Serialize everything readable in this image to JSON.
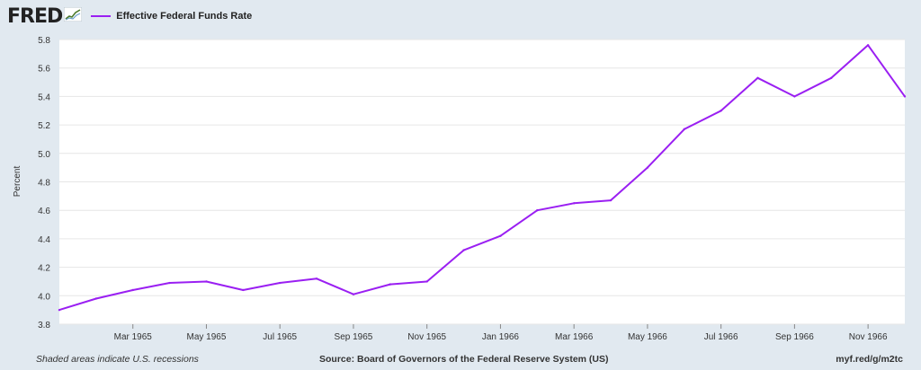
{
  "header": {
    "logo_text": "FRED",
    "logo_icon": "fred-chart-icon",
    "legend_label": "Effective Federal Funds Rate"
  },
  "colors": {
    "background": "#e1e9f0",
    "plot_bg": "#ffffff",
    "gridline": "#e6e6e6",
    "series": "#9a1ff2",
    "text": "#333333"
  },
  "footer": {
    "note": "Shaded areas indicate U.S. recessions",
    "source": "Source: Board of Governors of the Federal Reserve System (US)",
    "url": "myf.red/g/m2tc"
  },
  "chart_data": {
    "type": "line",
    "ylabel": "Percent",
    "ylim": [
      3.8,
      5.8
    ],
    "yticks": [
      3.8,
      4.0,
      4.2,
      4.4,
      4.6,
      4.8,
      5.0,
      5.2,
      5.4,
      5.6,
      5.8
    ],
    "ytick_labels": [
      "3.8",
      "4.0",
      "4.2",
      "4.4",
      "4.6",
      "4.8",
      "5.0",
      "5.2",
      "5.4",
      "5.6",
      "5.8"
    ],
    "xlim": [
      "1965-01",
      "1966-12"
    ],
    "xtick_positions": [
      "1965-03",
      "1965-05",
      "1965-07",
      "1965-09",
      "1965-11",
      "1966-01",
      "1966-03",
      "1966-05",
      "1966-07",
      "1966-09",
      "1966-11"
    ],
    "xtick_labels": [
      "Mar 1965",
      "May 1965",
      "Jul 1965",
      "Sep 1965",
      "Nov 1965",
      "Jan 1966",
      "Mar 1966",
      "May 1966",
      "Jul 1966",
      "Sep 1966",
      "Nov 1966"
    ],
    "grid": true,
    "legend_position": "top-left",
    "series": [
      {
        "name": "Effective Federal Funds Rate",
        "color": "#9a1ff2",
        "x": [
          "1965-01",
          "1965-02",
          "1965-03",
          "1965-04",
          "1965-05",
          "1965-06",
          "1965-07",
          "1965-08",
          "1965-09",
          "1965-10",
          "1965-11",
          "1965-12",
          "1966-01",
          "1966-02",
          "1966-03",
          "1966-04",
          "1966-05",
          "1966-06",
          "1966-07",
          "1966-08",
          "1966-09",
          "1966-10",
          "1966-11",
          "1966-12"
        ],
        "values": [
          3.9,
          3.98,
          4.04,
          4.09,
          4.1,
          4.04,
          4.09,
          4.12,
          4.01,
          4.08,
          4.1,
          4.32,
          4.42,
          4.6,
          4.65,
          4.67,
          4.9,
          5.17,
          5.3,
          5.53,
          5.4,
          5.53,
          5.76,
          5.4
        ]
      }
    ]
  }
}
